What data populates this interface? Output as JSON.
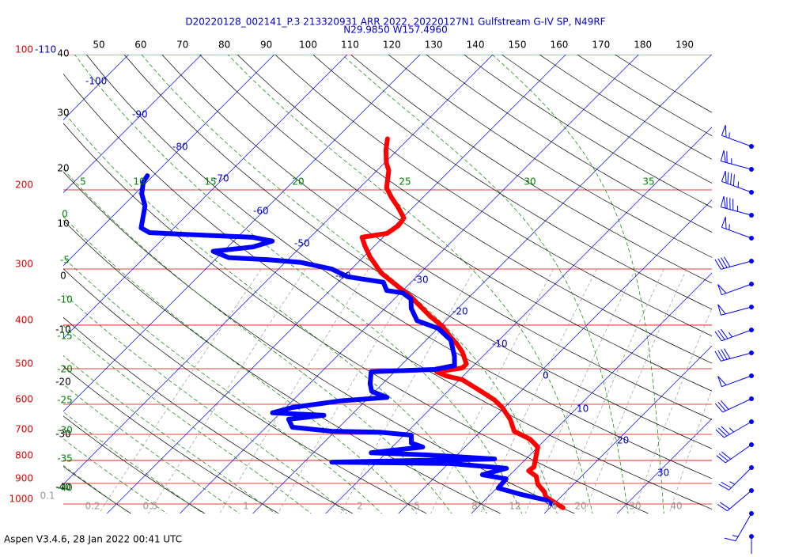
{
  "chart_data": {
    "type": "skewt",
    "title": "D20220128_002141_P.3 213320931 ARR 2022, 20220127N1 Gulfstream G-IV SP, N49RF",
    "subtitle": "N29.9850 W157.4960",
    "footer": "Aspen V3.4.6, 28 Jan 2022  00:41 UTC",
    "ylim": [
      100,
      1050
    ],
    "log_y": true,
    "xlim": [
      -46,
      43
    ],
    "pressure_ticks": [
      100,
      200,
      300,
      400,
      500,
      600,
      700,
      800,
      900,
      1000
    ],
    "isotherm_ticks": [
      -110,
      -100,
      -90,
      -80,
      -70,
      -60,
      -50,
      -40,
      -30,
      -20,
      -10,
      0,
      10,
      20,
      30
    ],
    "dry_adiabat_ticks_left": [
      40,
      30,
      20,
      10,
      0,
      -10,
      -20,
      -30,
      -40
    ],
    "dry_adiabat_ticks_top": [
      50,
      60,
      70,
      80,
      90,
      100,
      110,
      120,
      130,
      140,
      150,
      160,
      170,
      180,
      190
    ],
    "moist_adiabat_ticks_left": [
      0,
      -5,
      -10,
      -15,
      -20,
      -25,
      -30,
      -35,
      -40
    ],
    "moist_adiabat_ticks_top": [
      5,
      10,
      15,
      20,
      25,
      30,
      35
    ],
    "mixing_ratio_ticks": [
      0.1,
      0.2,
      0.5,
      1,
      2,
      5,
      8,
      12,
      16,
      20,
      30,
      40
    ],
    "series": [
      {
        "color": "#ff0000",
        "pressure": [
          154,
          163,
          174,
          181,
          198,
          208,
          219,
          231,
          240,
          250,
          255,
          266,
          282,
          306,
          325,
          346,
          360,
          383,
          402,
          424,
          441,
          459,
          488,
          498,
          508,
          519,
          529,
          556,
          586,
          610,
          648,
          689,
          717,
          747,
          827,
          844,
          868,
          904,
          941,
          964,
          1020
        ],
        "temperature": [
          -52.9,
          -51.6,
          -49.8,
          -48.4,
          -46.3,
          -44.3,
          -42.0,
          -39.8,
          -39.5,
          -40.0,
          -42.9,
          -41.4,
          -39.1,
          -35.4,
          -31.8,
          -28.0,
          -25.9,
          -22.6,
          -19.7,
          -17.2,
          -15.2,
          -13.4,
          -11.2,
          -11.2,
          -14.2,
          -12.3,
          -9.6,
          -6.1,
          -2.5,
          -0.3,
          2.4,
          4.6,
          7.8,
          10.0,
          12.2,
          12.0,
          13.8,
          15.1,
          17.1,
          17.9,
          21.8
        ]
      },
      {
        "color": "#0000ff",
        "pressure": [
          186,
          192,
          204,
          217,
          226,
          243,
          249,
          251,
          255,
          260,
          268,
          274,
          283,
          286,
          290,
          300,
          312,
          316,
          321,
          335,
          339,
          350,
          367,
          391,
          407,
          432,
          469,
          492,
          502,
          504,
          508,
          540,
          562,
          579,
          590,
          610,
          627,
          635,
          648,
          675,
          689,
          692,
          703,
          732,
          747,
          769,
          778,
          794,
          807,
          813,
          833,
          861,
          879,
          922,
          953,
          980,
          1000
        ],
        "temperature": [
          -80.8,
          -80.5,
          -79.1,
          -77.0,
          -76.1,
          -74.5,
          -72.7,
          -68.2,
          -57.9,
          -54.7,
          -56.6,
          -61.4,
          -58.4,
          -52.7,
          -47.9,
          -42.7,
          -39.5,
          -37.0,
          -33.8,
          -32.2,
          -29.7,
          -27.7,
          -26.4,
          -23.9,
          -19.9,
          -16.6,
          -13.9,
          -12.6,
          -14.8,
          -17.9,
          -23.2,
          -21.7,
          -20.4,
          -17.5,
          -23.5,
          -29.1,
          -31.1,
          -23.7,
          -28.0,
          -26.4,
          -20.4,
          -13.8,
          -9.0,
          -7.9,
          -5.8,
          -12.1,
          -4.1,
          5.7,
          -16.2,
          0.3,
          8.6,
          6.2,
          10.0,
          10.2,
          14.3,
          18.4,
          19.7
        ]
      }
    ],
    "wind": {
      "color": "#0000ff",
      "speed": [
        55,
        65,
        85,
        85,
        55,
        40,
        50,
        50,
        35,
        40,
        50,
        30,
        35,
        30,
        25,
        20,
        15,
        10
      ],
      "direction": [
        290,
        285,
        290,
        285,
        290,
        255,
        250,
        255,
        250,
        255,
        250,
        245,
        240,
        235,
        225,
        230,
        210,
        180
      ]
    }
  }
}
